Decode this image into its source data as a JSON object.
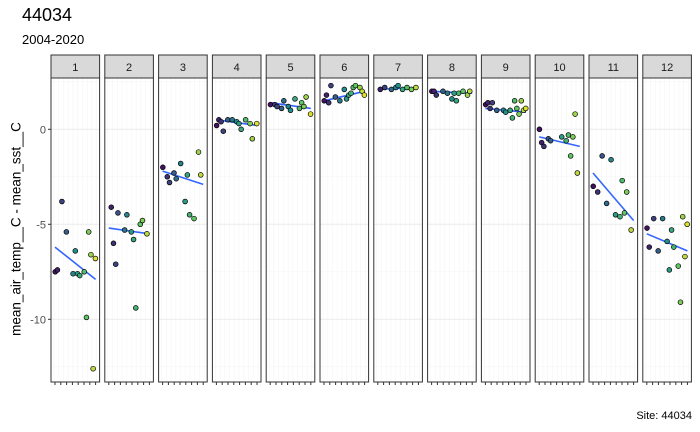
{
  "header": {
    "title": "44034",
    "subtitle": "2004-2020"
  },
  "caption": "Site: 44034",
  "chart_data": {
    "type": "scatter",
    "facet_by": "month",
    "ylabel": "mean_air_temp__C - mean_sst__C",
    "xlabel": "",
    "ylim": [
      -13.3,
      2.7
    ],
    "yticks": [
      0,
      -5,
      -10
    ],
    "grid": true,
    "trend_line": "linear fit per panel",
    "colors": {
      "trend": "#3366FF",
      "strip": "#D9D9D9",
      "grid_major": "#EBEBEB",
      "grid_minor": "#F5F5F5",
      "palette": [
        "#440154",
        "#3B528B",
        "#21908C",
        "#5DC863",
        "#FDE725"
      ]
    },
    "panels": [
      {
        "label": "1",
        "points": [
          [
            0.05,
            -7.5
          ],
          [
            0.1,
            -7.4
          ],
          [
            0.2,
            -3.8
          ],
          [
            0.3,
            -5.4
          ],
          [
            0.45,
            -7.6
          ],
          [
            0.5,
            -6.4
          ],
          [
            0.55,
            -7.6
          ],
          [
            0.6,
            -7.7
          ],
          [
            0.7,
            -7.5
          ],
          [
            0.75,
            -9.9
          ],
          [
            0.8,
            -5.4
          ],
          [
            0.85,
            -6.6
          ],
          [
            0.9,
            -12.6
          ],
          [
            0.95,
            -6.8
          ]
        ],
        "fit": [
          -6.2,
          -7.9
        ]
      },
      {
        "label": "2",
        "points": [
          [
            0.1,
            -4.1
          ],
          [
            0.15,
            -6.0
          ],
          [
            0.2,
            -7.1
          ],
          [
            0.25,
            -4.4
          ],
          [
            0.4,
            -5.3
          ],
          [
            0.45,
            -4.5
          ],
          [
            0.55,
            -5.4
          ],
          [
            0.6,
            -5.8
          ],
          [
            0.65,
            -9.4
          ],
          [
            0.75,
            -5.0
          ],
          [
            0.8,
            -4.8
          ],
          [
            0.9,
            -5.5
          ]
        ],
        "fit": [
          -5.2,
          -5.5
        ]
      },
      {
        "label": "3",
        "points": [
          [
            0.05,
            -2.0
          ],
          [
            0.15,
            -2.5
          ],
          [
            0.2,
            -2.8
          ],
          [
            0.3,
            -2.3
          ],
          [
            0.35,
            -2.6
          ],
          [
            0.45,
            -1.8
          ],
          [
            0.55,
            -3.8
          ],
          [
            0.6,
            -2.4
          ],
          [
            0.65,
            -4.5
          ],
          [
            0.75,
            -4.7
          ],
          [
            0.85,
            -1.2
          ],
          [
            0.9,
            -2.4
          ]
        ],
        "fit": [
          -2.2,
          -2.9
        ]
      },
      {
        "label": "4",
        "points": [
          [
            0.05,
            0.2
          ],
          [
            0.1,
            0.5
          ],
          [
            0.15,
            0.4
          ],
          [
            0.2,
            -0.1
          ],
          [
            0.3,
            0.5
          ],
          [
            0.4,
            0.5
          ],
          [
            0.5,
            0.4
          ],
          [
            0.55,
            0.3
          ],
          [
            0.6,
            0.0
          ],
          [
            0.7,
            0.5
          ],
          [
            0.8,
            0.3
          ],
          [
            0.85,
            -0.5
          ],
          [
            0.95,
            0.3
          ]
        ],
        "fit": [
          0.5,
          0.2
        ]
      },
      {
        "label": "5",
        "points": [
          [
            0.05,
            1.3
          ],
          [
            0.15,
            1.3
          ],
          [
            0.2,
            1.2
          ],
          [
            0.3,
            1.1
          ],
          [
            0.35,
            1.5
          ],
          [
            0.45,
            1.2
          ],
          [
            0.5,
            1.0
          ],
          [
            0.6,
            1.6
          ],
          [
            0.7,
            1.1
          ],
          [
            0.75,
            1.4
          ],
          [
            0.8,
            1.2
          ],
          [
            0.85,
            1.7
          ],
          [
            0.95,
            0.8
          ]
        ],
        "fit": [
          1.4,
          1.1
        ]
      },
      {
        "label": "6",
        "points": [
          [
            0.05,
            1.5
          ],
          [
            0.1,
            1.8
          ],
          [
            0.15,
            1.4
          ],
          [
            0.2,
            2.3
          ],
          [
            0.3,
            1.7
          ],
          [
            0.4,
            1.5
          ],
          [
            0.5,
            2.1
          ],
          [
            0.55,
            1.6
          ],
          [
            0.6,
            1.8
          ],
          [
            0.65,
            1.9
          ],
          [
            0.7,
            2.2
          ],
          [
            0.75,
            2.3
          ],
          [
            0.85,
            2.2
          ],
          [
            0.9,
            2.0
          ],
          [
            0.95,
            1.8
          ]
        ],
        "fit": [
          1.5,
          2.0
        ]
      },
      {
        "label": "7",
        "points": [
          [
            0.1,
            2.1
          ],
          [
            0.2,
            2.2
          ],
          [
            0.35,
            2.1
          ],
          [
            0.45,
            2.2
          ],
          [
            0.5,
            2.3
          ],
          [
            0.6,
            2.1
          ],
          [
            0.7,
            2.2
          ],
          [
            0.8,
            2.1
          ],
          [
            0.9,
            2.2
          ]
        ],
        "fit": [
          2.1,
          2.2
        ]
      },
      {
        "label": "8",
        "points": [
          [
            0.05,
            2.0
          ],
          [
            0.1,
            2.0
          ],
          [
            0.15,
            1.8
          ],
          [
            0.3,
            2.0
          ],
          [
            0.4,
            1.9
          ],
          [
            0.5,
            1.6
          ],
          [
            0.55,
            1.9
          ],
          [
            0.6,
            1.5
          ],
          [
            0.65,
            1.9
          ],
          [
            0.75,
            2.0
          ],
          [
            0.85,
            1.8
          ],
          [
            0.9,
            2.0
          ]
        ],
        "fit": [
          2.0,
          1.9
        ]
      },
      {
        "label": "9",
        "points": [
          [
            0.05,
            1.3
          ],
          [
            0.1,
            1.4
          ],
          [
            0.15,
            1.1
          ],
          [
            0.2,
            1.4
          ],
          [
            0.3,
            1.0
          ],
          [
            0.45,
            1.0
          ],
          [
            0.5,
            0.9
          ],
          [
            0.6,
            1.0
          ],
          [
            0.65,
            0.6
          ],
          [
            0.7,
            1.5
          ],
          [
            0.75,
            1.1
          ],
          [
            0.8,
            0.8
          ],
          [
            0.85,
            1.5
          ],
          [
            0.9,
            1.0
          ],
          [
            0.95,
            1.1
          ]
        ],
        "fit": [
          1.1,
          0.9
        ]
      },
      {
        "label": "10",
        "points": [
          [
            0.05,
            0.0
          ],
          [
            0.1,
            -0.7
          ],
          [
            0.15,
            -0.9
          ],
          [
            0.25,
            -0.5
          ],
          [
            0.3,
            -0.6
          ],
          [
            0.55,
            -0.4
          ],
          [
            0.65,
            -0.6
          ],
          [
            0.7,
            -0.3
          ],
          [
            0.75,
            -1.4
          ],
          [
            0.8,
            -0.4
          ],
          [
            0.85,
            0.8
          ],
          [
            0.9,
            -2.3
          ]
        ],
        "fit": [
          -0.4,
          -0.9
        ]
      },
      {
        "label": "11",
        "points": [
          [
            0.05,
            -3.0
          ],
          [
            0.15,
            -3.3
          ],
          [
            0.25,
            -1.4
          ],
          [
            0.35,
            -3.9
          ],
          [
            0.45,
            -1.6
          ],
          [
            0.55,
            -4.5
          ],
          [
            0.65,
            -4.6
          ],
          [
            0.7,
            -2.7
          ],
          [
            0.75,
            -4.4
          ],
          [
            0.8,
            -3.3
          ],
          [
            0.9,
            -5.3
          ]
        ],
        "fit": [
          -2.3,
          -4.8
        ]
      },
      {
        "label": "12",
        "points": [
          [
            0.05,
            -5.2
          ],
          [
            0.1,
            -6.2
          ],
          [
            0.2,
            -4.7
          ],
          [
            0.3,
            -6.4
          ],
          [
            0.4,
            -4.7
          ],
          [
            0.5,
            -5.9
          ],
          [
            0.55,
            -7.4
          ],
          [
            0.6,
            -5.3
          ],
          [
            0.65,
            -6.2
          ],
          [
            0.75,
            -7.2
          ],
          [
            0.8,
            -9.1
          ],
          [
            0.85,
            -4.6
          ],
          [
            0.9,
            -6.7
          ],
          [
            0.95,
            -5.0
          ]
        ],
        "fit": [
          -5.5,
          -6.4
        ]
      }
    ]
  }
}
